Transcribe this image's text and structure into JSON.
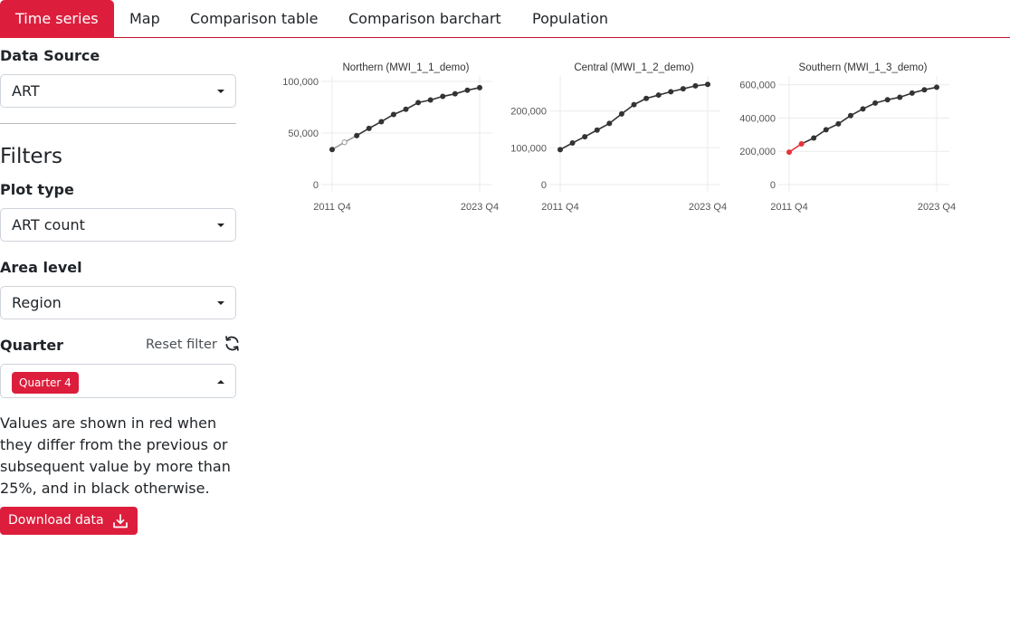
{
  "tabs": [
    {
      "label": "Time series",
      "active": true
    },
    {
      "label": "Map",
      "active": false
    },
    {
      "label": "Comparison table",
      "active": false
    },
    {
      "label": "Comparison barchart",
      "active": false
    },
    {
      "label": "Population",
      "active": false
    }
  ],
  "sidebar": {
    "data_source": {
      "label": "Data Source",
      "value": "ART"
    },
    "filters_title": "Filters",
    "plot_type": {
      "label": "Plot type",
      "value": "ART count"
    },
    "area_level": {
      "label": "Area level",
      "value": "Region"
    },
    "quarter": {
      "label": "Quarter",
      "reset_label": "Reset filter",
      "chip": "Quarter 4"
    },
    "note": "Values are shown in red when they differ from the previous or subsequent value by more than 25%, and in black otherwise.",
    "download_label": "Download data"
  },
  "colors": {
    "accent": "#dc1e3c",
    "normal_point": "#333333",
    "flagged_point": "#e8323c"
  },
  "chart_data": [
    {
      "type": "line",
      "title": "Northern (MWI_1_1_demo)",
      "x": [
        "2011 Q4",
        "2012 Q4",
        "2013 Q4",
        "2014 Q4",
        "2015 Q4",
        "2016 Q4",
        "2017 Q4",
        "2018 Q4",
        "2019 Q4",
        "2020 Q4",
        "2021 Q4",
        "2022 Q4",
        "2023 Q4"
      ],
      "x_tick_labels": [
        "2011 Q4",
        "2023 Q4"
      ],
      "values": [
        34000,
        41000,
        47500,
        54500,
        61000,
        68000,
        73000,
        79500,
        82000,
        85500,
        88000,
        91500,
        94000
      ],
      "flags": [
        "normal",
        "unfilled",
        "normal",
        "normal",
        "normal",
        "normal",
        "normal",
        "normal",
        "normal",
        "normal",
        "normal",
        "normal",
        "normal"
      ],
      "ylim": [
        0,
        100000
      ],
      "y_ticks": [
        0,
        50000,
        100000
      ],
      "y_tick_labels": [
        "0",
        "50,000",
        "100,000"
      ]
    },
    {
      "type": "line",
      "title": "Central (MWI_1_2_demo)",
      "x": [
        "2011 Q4",
        "2012 Q4",
        "2013 Q4",
        "2014 Q4",
        "2015 Q4",
        "2016 Q4",
        "2017 Q4",
        "2018 Q4",
        "2019 Q4",
        "2020 Q4",
        "2021 Q4",
        "2022 Q4",
        "2023 Q4"
      ],
      "x_tick_labels": [
        "2011 Q4",
        "2023 Q4"
      ],
      "values": [
        95000,
        113000,
        130000,
        148000,
        166000,
        192000,
        217000,
        234000,
        243000,
        252000,
        260000,
        268000,
        272000
      ],
      "flags": [
        "normal",
        "normal",
        "normal",
        "normal",
        "normal",
        "normal",
        "normal",
        "normal",
        "normal",
        "normal",
        "normal",
        "normal",
        "normal"
      ],
      "ylim": [
        0,
        280000
      ],
      "y_ticks": [
        0,
        100000,
        200000
      ],
      "y_tick_labels": [
        "0",
        "100,000",
        "200,000"
      ]
    },
    {
      "type": "line",
      "title": "Southern (MWI_1_3_demo)",
      "x": [
        "2011 Q4",
        "2012 Q4",
        "2013 Q4",
        "2014 Q4",
        "2015 Q4",
        "2016 Q4",
        "2017 Q4",
        "2018 Q4",
        "2019 Q4",
        "2020 Q4",
        "2021 Q4",
        "2022 Q4",
        "2023 Q4"
      ],
      "x_tick_labels": [
        "2011 Q4",
        "2023 Q4"
      ],
      "values": [
        195000,
        245000,
        280000,
        330000,
        365000,
        415000,
        455000,
        490000,
        510000,
        525000,
        550000,
        570000,
        585000
      ],
      "flags": [
        "flagged",
        "flagged",
        "normal",
        "normal",
        "normal",
        "normal",
        "normal",
        "normal",
        "normal",
        "normal",
        "normal",
        "normal",
        "normal"
      ],
      "ylim": [
        0,
        620000
      ],
      "y_ticks": [
        0,
        200000,
        400000,
        600000
      ],
      "y_tick_labels": [
        "0",
        "200,000",
        "400,000",
        "600,000"
      ]
    }
  ]
}
